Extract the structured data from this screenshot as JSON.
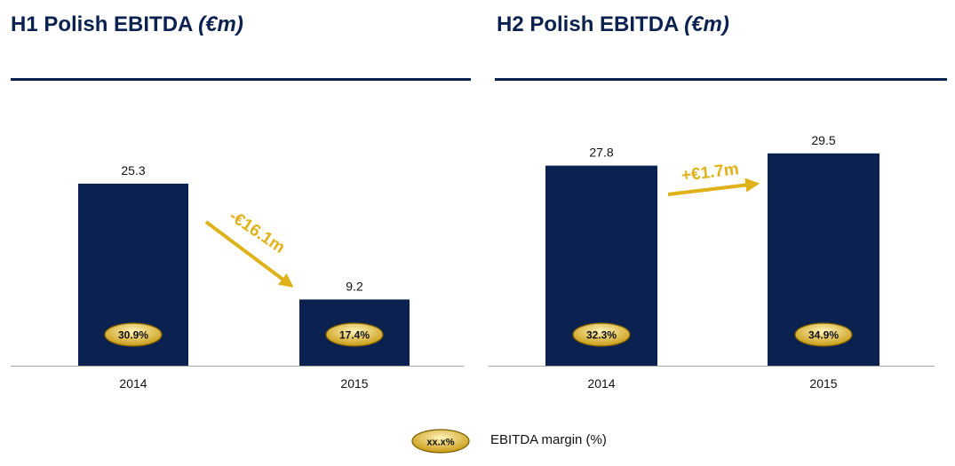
{
  "colors": {
    "bar": "#0b2150",
    "accent": "#e0b21a",
    "pill_light": "#fff3b8",
    "pill_dark": "#c99a12"
  },
  "chart_data": [
    {
      "type": "bar",
      "title": "H1 Polish EBITDA",
      "title_unit": "(€m)",
      "categories": [
        "2014",
        "2015"
      ],
      "values": [
        25.3,
        9.2
      ],
      "value_labels": [
        "25.3",
        "9.2"
      ],
      "margins": [
        "30.9%",
        "17.4%"
      ],
      "change_label": "-€16.1m",
      "ylim": [
        0,
        37
      ]
    },
    {
      "type": "bar",
      "title": "H2 Polish EBITDA",
      "title_unit": "(€m)",
      "categories": [
        "2014",
        "2015"
      ],
      "values": [
        27.8,
        29.5
      ],
      "value_labels": [
        "27.8",
        "29.5"
      ],
      "margins": [
        "32.3%",
        "34.9%"
      ],
      "change_label": "+€1.7m",
      "ylim": [
        0,
        37
      ]
    }
  ],
  "legend": {
    "sample": "xx.x%",
    "label": "EBITDA margin (%)"
  }
}
